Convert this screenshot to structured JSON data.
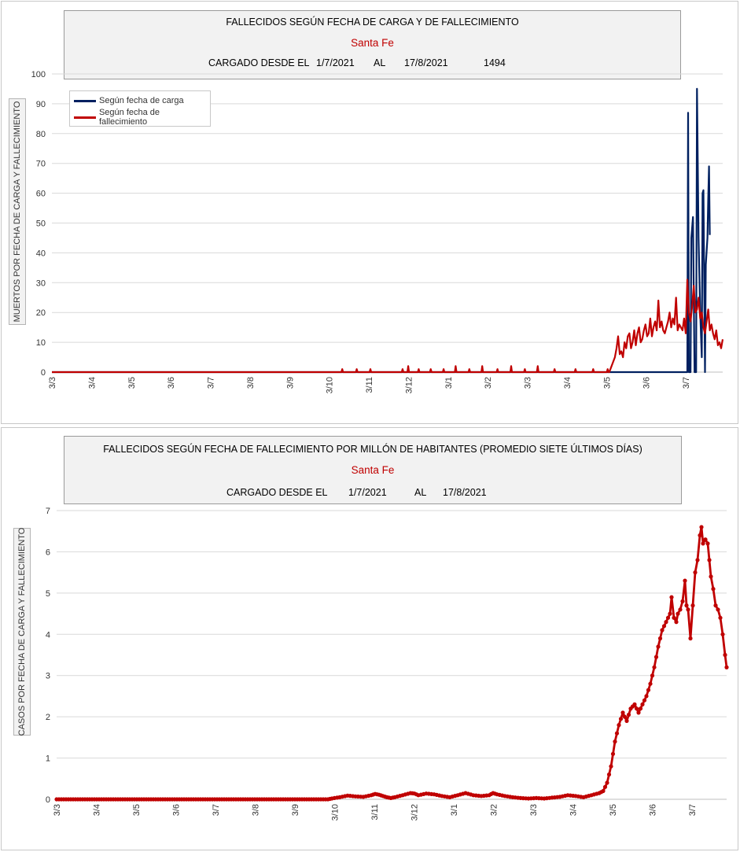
{
  "charts": [
    {
      "title": "FALLECIDOS SEGÚN FECHA DE CARGA Y DE FALLECIMIENTO",
      "region": "Santa Fe",
      "cargado_label": "CARGADO DESDE EL",
      "from": "1/7/2021",
      "al_label": "AL",
      "to": "17/8/2021",
      "total": "1494",
      "ylabel": "MUERTOS  POR FECHA DE CARGA  Y FALLECIMIENTO"
    },
    {
      "title": "FALLECIDOS SEGÚN FECHA DE FALLECIMIENTO POR MILLÓN DE HABITANTES (PROMEDIO SIETE ÚLTIMOS DÍAS)",
      "region": "Santa Fe",
      "cargado_label": "CARGADO DESDE EL",
      "from": "1/7/2021",
      "al_label": "AL",
      "to": "17/8/2021",
      "ylabel": "CASOS POR FECHA DE CARGA  Y FALLECIMIENTO"
    }
  ],
  "chart_data": [
    {
      "type": "line",
      "title": "FALLECIDOS SEGÚN FECHA DE CARGA Y DE FALLECIMIENTO",
      "ylabel": "MUERTOS  POR FECHA DE CARGA  Y FALLECIMIENTO",
      "ylim": [
        0,
        100
      ],
      "yticks": [
        0,
        10,
        20,
        30,
        40,
        50,
        60,
        70,
        80,
        90,
        100
      ],
      "xticks": [
        "3/3",
        "3/4",
        "3/5",
        "3/6",
        "3/7",
        "3/8",
        "3/9",
        "3/10",
        "3/11",
        "3/12",
        "3/1",
        "3/2",
        "3/3",
        "3/4",
        "3/5",
        "3/6",
        "3/7"
      ],
      "grid": true,
      "legend_position": "top-left",
      "series": [
        {
          "name": "Según fecha de carga",
          "color": "#002060",
          "points": [
            [
              0,
              0
            ],
            [
              790,
              0
            ],
            [
              791,
              87
            ],
            [
              792,
              0
            ],
            [
              794,
              0
            ],
            [
              795,
              45
            ],
            [
              797,
              52
            ],
            [
              799,
              0
            ],
            [
              801,
              0
            ],
            [
              802,
              95
            ],
            [
              803,
              70
            ],
            [
              804,
              45
            ],
            [
              806,
              20
            ],
            [
              808,
              5
            ],
            [
              809,
              60
            ],
            [
              810,
              61
            ],
            [
              812,
              0
            ],
            [
              813,
              36
            ],
            [
              815,
              45
            ],
            [
              816,
              58
            ],
            [
              817,
              69
            ],
            [
              818,
              46
            ]
          ]
        },
        {
          "name": "Según fecha de fallecimiento",
          "color": "#c00000",
          "points": [
            [
              0,
              0
            ],
            [
              360,
              0
            ],
            [
              361,
              1
            ],
            [
              362,
              0
            ],
            [
              378,
              0
            ],
            [
              379,
              1
            ],
            [
              380,
              0
            ],
            [
              395,
              0
            ],
            [
              396,
              1
            ],
            [
              397,
              0
            ],
            [
              435,
              0
            ],
            [
              436,
              1
            ],
            [
              437,
              0
            ],
            [
              442,
              0
            ],
            [
              443,
              2
            ],
            [
              444,
              0
            ],
            [
              455,
              0
            ],
            [
              456,
              1
            ],
            [
              457,
              0
            ],
            [
              470,
              0
            ],
            [
              471,
              1
            ],
            [
              472,
              0
            ],
            [
              486,
              0
            ],
            [
              487,
              1
            ],
            [
              488,
              0
            ],
            [
              501,
              0
            ],
            [
              502,
              2
            ],
            [
              503,
              0
            ],
            [
              518,
              0
            ],
            [
              519,
              1
            ],
            [
              520,
              0
            ],
            [
              534,
              0
            ],
            [
              535,
              2
            ],
            [
              536,
              0
            ],
            [
              553,
              0
            ],
            [
              554,
              1
            ],
            [
              555,
              0
            ],
            [
              570,
              0
            ],
            [
              571,
              2
            ],
            [
              572,
              0
            ],
            [
              587,
              0
            ],
            [
              588,
              1
            ],
            [
              589,
              0
            ],
            [
              603,
              0
            ],
            [
              604,
              2
            ],
            [
              605,
              0
            ],
            [
              624,
              0
            ],
            [
              625,
              1
            ],
            [
              626,
              0
            ],
            [
              650,
              0
            ],
            [
              651,
              1
            ],
            [
              652,
              0
            ],
            [
              672,
              0
            ],
            [
              673,
              1
            ],
            [
              674,
              0
            ],
            [
              690,
              0
            ],
            [
              691,
              1
            ],
            [
              692,
              0
            ],
            [
              693,
              0
            ],
            [
              700,
              5
            ],
            [
              702,
              8
            ],
            [
              704,
              12
            ],
            [
              706,
              6
            ],
            [
              708,
              7
            ],
            [
              710,
              5
            ],
            [
              712,
              10
            ],
            [
              714,
              8
            ],
            [
              716,
              12
            ],
            [
              718,
              13
            ],
            [
              720,
              8
            ],
            [
              722,
              10
            ],
            [
              724,
              14
            ],
            [
              726,
              9
            ],
            [
              728,
              13
            ],
            [
              730,
              15
            ],
            [
              732,
              10
            ],
            [
              734,
              11
            ],
            [
              736,
              14
            ],
            [
              738,
              16
            ],
            [
              740,
              12
            ],
            [
              742,
              13
            ],
            [
              744,
              18
            ],
            [
              746,
              12
            ],
            [
              748,
              15
            ],
            [
              750,
              17
            ],
            [
              752,
              14
            ],
            [
              754,
              24
            ],
            [
              756,
              15
            ],
            [
              758,
              17
            ],
            [
              760,
              14
            ],
            [
              762,
              13
            ],
            [
              764,
              15
            ],
            [
              766,
              17
            ],
            [
              768,
              20
            ],
            [
              770,
              15
            ],
            [
              772,
              18
            ],
            [
              774,
              16
            ],
            [
              776,
              25
            ],
            [
              778,
              14
            ],
            [
              780,
              16
            ],
            [
              782,
              15
            ],
            [
              784,
              14
            ],
            [
              786,
              18
            ],
            [
              788,
              13
            ],
            [
              790,
              31
            ],
            [
              792,
              20
            ],
            [
              794,
              17
            ],
            [
              796,
              22
            ],
            [
              798,
              29
            ],
            [
              800,
              20
            ],
            [
              802,
              21
            ],
            [
              804,
              25
            ],
            [
              806,
              18
            ],
            [
              808,
              20
            ],
            [
              810,
              15
            ],
            [
              812,
              13
            ],
            [
              814,
              17
            ],
            [
              816,
              21
            ],
            [
              818,
              14
            ],
            [
              820,
              16
            ],
            [
              822,
              13
            ],
            [
              824,
              11
            ],
            [
              826,
              14
            ],
            [
              828,
              9
            ],
            [
              830,
              10
            ],
            [
              832,
              8
            ],
            [
              834,
              11
            ]
          ]
        }
      ]
    },
    {
      "type": "line",
      "title": "FALLECIDOS SEGÚN FECHA DE FALLECIMIENTO POR MILLÓN DE HABITANTES (PROMEDIO SIETE ÚLTIMOS DÍAS)",
      "ylabel": "CASOS POR FECHA DE CARGA  Y FALLECIMIENTO",
      "ylim": [
        0,
        7
      ],
      "yticks": [
        0,
        1,
        2,
        3,
        4,
        5,
        6,
        7
      ],
      "xticks": [
        "3/3",
        "3/4",
        "3/5",
        "3/6",
        "3/7",
        "3/8",
        "3/9",
        "3/10",
        "3/11",
        "3/12",
        "3/1",
        "3/2",
        "3/3",
        "3/4",
        "3/5",
        "3/6",
        "3/7"
      ],
      "grid": true,
      "markers": true,
      "series": [
        {
          "color": "#c00000",
          "points": [
            [
              0,
              0
            ],
            [
              345,
              0
            ],
            [
              350,
              0.02
            ],
            [
              360,
              0.05
            ],
            [
              370,
              0.09
            ],
            [
              380,
              0.07
            ],
            [
              390,
              0.06
            ],
            [
              400,
              0.1
            ],
            [
              405,
              0.13
            ],
            [
              410,
              0.11
            ],
            [
              415,
              0.08
            ],
            [
              420,
              0.05
            ],
            [
              425,
              0.03
            ],
            [
              430,
              0.05
            ],
            [
              440,
              0.1
            ],
            [
              450,
              0.15
            ],
            [
              455,
              0.14
            ],
            [
              460,
              0.1
            ],
            [
              470,
              0.14
            ],
            [
              480,
              0.12
            ],
            [
              490,
              0.08
            ],
            [
              500,
              0.05
            ],
            [
              510,
              0.1
            ],
            [
              520,
              0.15
            ],
            [
              530,
              0.1
            ],
            [
              540,
              0.08
            ],
            [
              550,
              0.1
            ],
            [
              555,
              0.15
            ],
            [
              560,
              0.12
            ],
            [
              570,
              0.08
            ],
            [
              580,
              0.05
            ],
            [
              590,
              0.03
            ],
            [
              600,
              0.02
            ],
            [
              610,
              0.03
            ],
            [
              620,
              0.02
            ],
            [
              630,
              0.04
            ],
            [
              640,
              0.06
            ],
            [
              650,
              0.1
            ],
            [
              660,
              0.08
            ],
            [
              670,
              0.05
            ],
            [
              680,
              0.1
            ],
            [
              690,
              0.15
            ],
            [
              695,
              0.2
            ],
            [
              700,
              0.4
            ],
            [
              705,
              0.8
            ],
            [
              710,
              1.4
            ],
            [
              715,
              1.8
            ],
            [
              720,
              2.1
            ],
            [
              725,
              1.9
            ],
            [
              730,
              2.2
            ],
            [
              735,
              2.3
            ],
            [
              740,
              2.1
            ],
            [
              745,
              2.3
            ],
            [
              750,
              2.5
            ],
            [
              755,
              2.8
            ],
            [
              760,
              3.2
            ],
            [
              765,
              3.7
            ],
            [
              770,
              4.1
            ],
            [
              775,
              4.3
            ],
            [
              780,
              4.5
            ],
            [
              782,
              4.9
            ],
            [
              785,
              4.4
            ],
            [
              788,
              4.3
            ],
            [
              790,
              4.5
            ],
            [
              793,
              4.6
            ],
            [
              796,
              4.8
            ],
            [
              799,
              5.3
            ],
            [
              801,
              4.7
            ],
            [
              803,
              4.6
            ],
            [
              806,
              3.9
            ],
            [
              809,
              4.7
            ],
            [
              812,
              5.5
            ],
            [
              815,
              5.8
            ],
            [
              818,
              6.4
            ],
            [
              820,
              6.6
            ],
            [
              822,
              6.2
            ],
            [
              825,
              6.3
            ],
            [
              828,
              6.2
            ],
            [
              830,
              5.8
            ],
            [
              832,
              5.4
            ],
            [
              835,
              5.1
            ],
            [
              838,
              4.7
            ],
            [
              841,
              4.6
            ],
            [
              844,
              4.4
            ],
            [
              847,
              4.0
            ],
            [
              850,
              3.5
            ],
            [
              852,
              3.2
            ]
          ]
        }
      ]
    }
  ]
}
